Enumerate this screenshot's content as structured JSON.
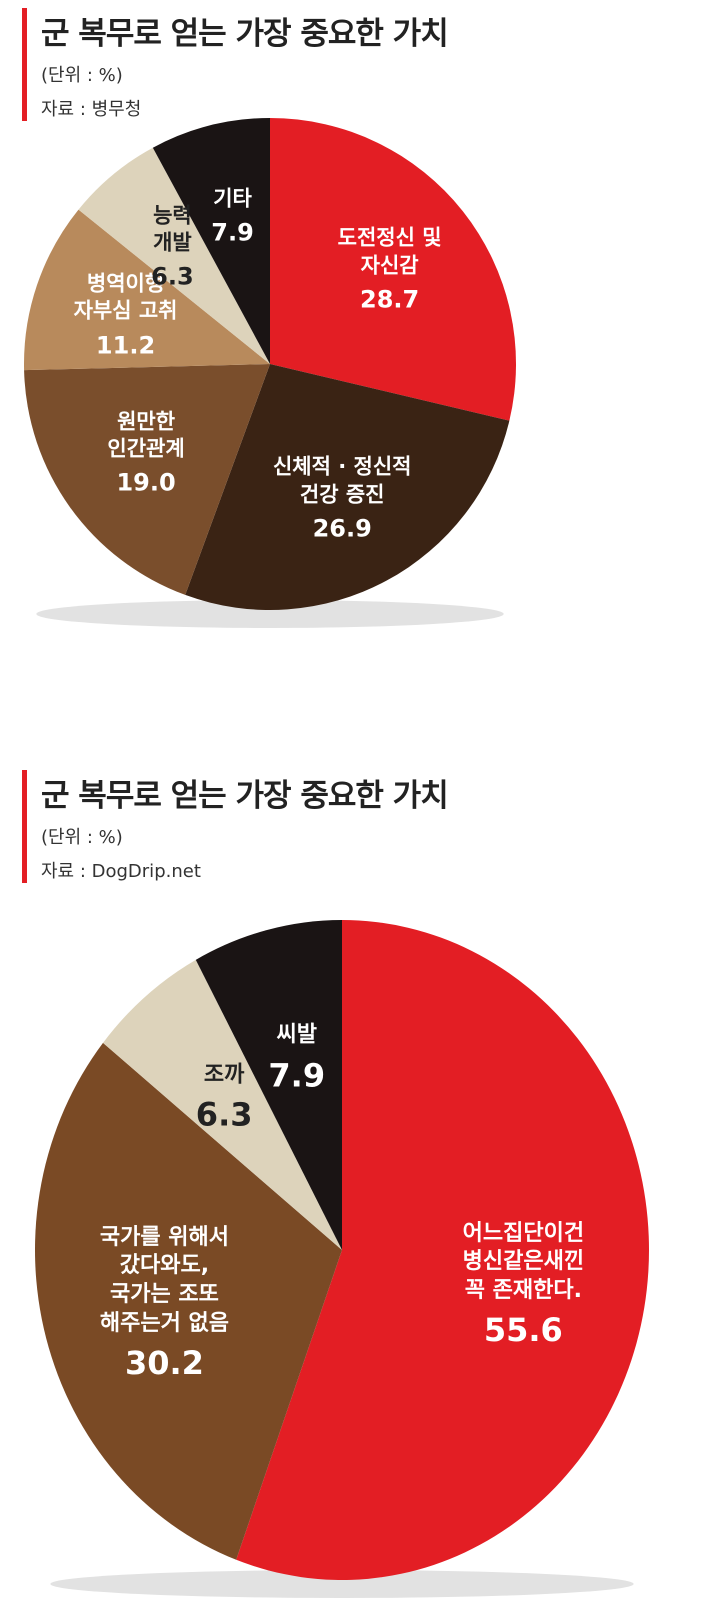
{
  "chart_data": [
    {
      "type": "pie",
      "title": "군 복무로 얻는 가장 중요한 가치",
      "subtitle": "(단위 : %)",
      "source": "자료 : 병무청",
      "categories": [
        "도전정신 및\n자신감",
        "신체적 · 정신적\n건강 증진",
        "원만한\n인간관계",
        "병역이행\n자부심 고취",
        "능력\n개발",
        "기타"
      ],
      "values": [
        28.7,
        26.9,
        19.0,
        11.2,
        6.3,
        7.9
      ],
      "value_labels": [
        "28.7",
        "26.9",
        "19.0",
        "11.2",
        "6.3",
        "7.9"
      ],
      "colors": [
        "#e31e24",
        "#3a2314",
        "#7a4e2c",
        "#b88a5c",
        "#ddd3bb",
        "#1a1414"
      ]
    },
    {
      "type": "pie",
      "title": "군 복무로 얻는 가장 중요한 가치",
      "subtitle": "(단위 : %)",
      "source": "자료 : DogDrip.net",
      "categories": [
        "어느집단이건\n병신같은새낀\n꼭 존재한다.",
        "국가를 위해서\n갔다와도,\n국가는 조또\n해주는거 없음",
        "조까",
        "씨발"
      ],
      "values": [
        55.6,
        30.2,
        6.3,
        7.9
      ],
      "value_labels": [
        "55.6",
        "30.2",
        "6.3",
        "7.9"
      ],
      "colors": [
        "#e31e24",
        "#7a4a25",
        "#ddd3bb",
        "#1a1414"
      ]
    }
  ]
}
